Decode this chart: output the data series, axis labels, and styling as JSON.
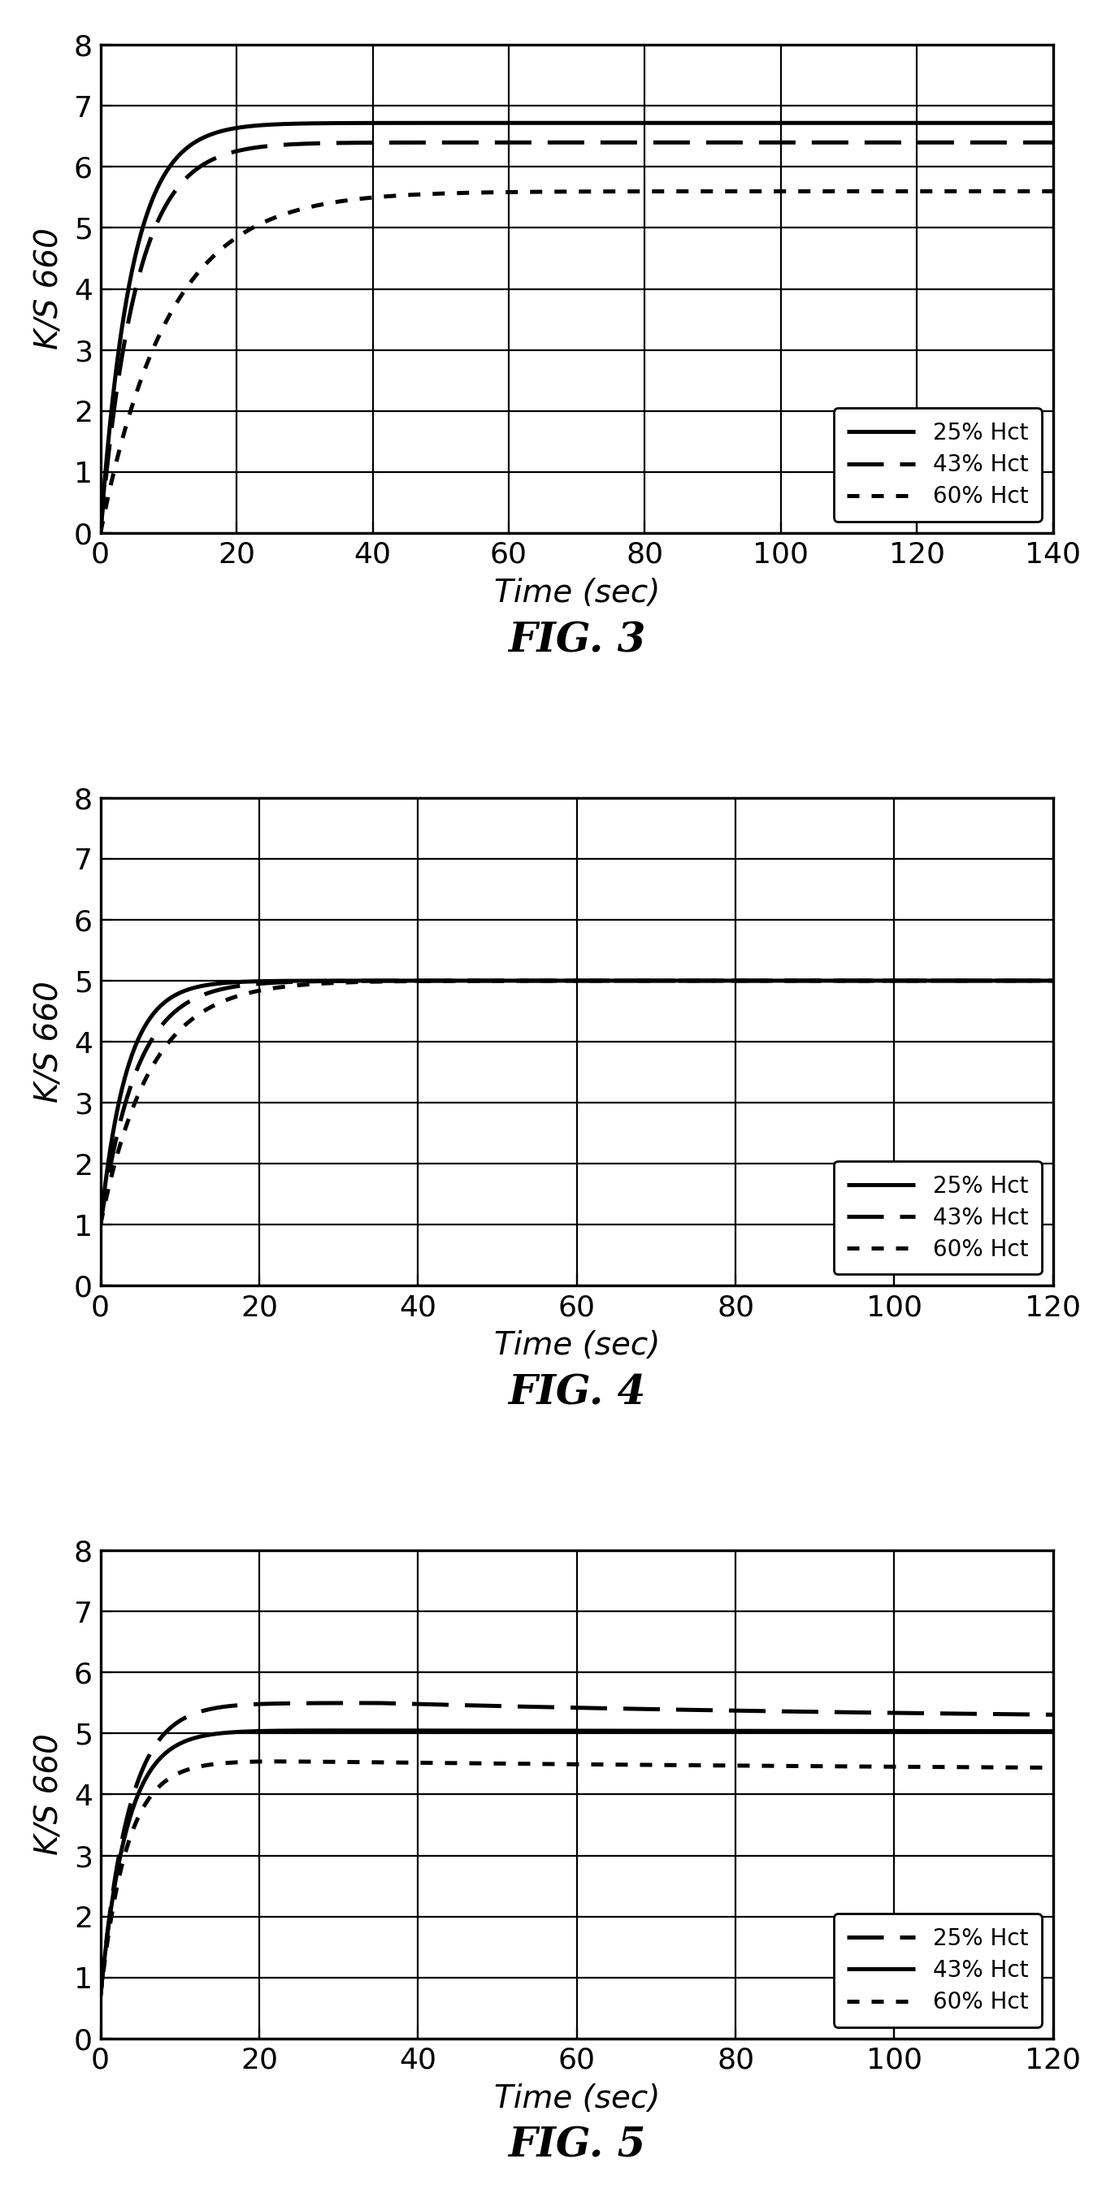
{
  "fig3": {
    "title": "FIG. 3",
    "xlabel": "Time (sec)",
    "ylabel": "K/S 660",
    "xlim": [
      0,
      140
    ],
    "ylim": [
      0,
      8
    ],
    "xticks": [
      0,
      20,
      40,
      60,
      80,
      100,
      120,
      140
    ],
    "yticks": [
      0,
      1,
      2,
      3,
      4,
      5,
      6,
      7,
      8
    ],
    "curves": [
      {
        "label": "25% Hct",
        "linestyle": "solid",
        "asymptote": 6.72,
        "start": 0.0,
        "rate": 0.22
      },
      {
        "label": "43% Hct",
        "linestyle": "long_dash",
        "asymptote": 6.4,
        "start": 0.0,
        "rate": 0.19
      },
      {
        "label": "60% Hct",
        "linestyle": "short_dash",
        "asymptote": 5.6,
        "start": 0.0,
        "rate": 0.1
      }
    ],
    "legend_loc": "lower right"
  },
  "fig4": {
    "title": "FIG. 4",
    "xlabel": "Time (sec)",
    "ylabel": "K/S 660",
    "xlim": [
      0,
      120
    ],
    "ylim": [
      0,
      8
    ],
    "xticks": [
      0,
      20,
      40,
      60,
      80,
      100,
      120
    ],
    "yticks": [
      0,
      1,
      2,
      3,
      4,
      5,
      6,
      7,
      8
    ],
    "curves": [
      {
        "label": "25% Hct",
        "linestyle": "solid",
        "asymptote": 5.0,
        "start": 1.0,
        "rate": 0.3
      },
      {
        "label": "43% Hct",
        "linestyle": "long_dash",
        "asymptote": 5.0,
        "start": 1.0,
        "rate": 0.22
      },
      {
        "label": "60% Hct",
        "linestyle": "short_dash",
        "asymptote": 5.0,
        "start": 1.0,
        "rate": 0.16
      }
    ],
    "legend_loc": "lower right"
  },
  "fig5": {
    "title": "FIG. 5",
    "xlabel": "Time (sec)",
    "ylabel": "K/S 660",
    "xlim": [
      0,
      120
    ],
    "ylim": [
      0,
      8
    ],
    "xticks": [
      0,
      20,
      40,
      60,
      80,
      100,
      120
    ],
    "yticks": [
      0,
      1,
      2,
      3,
      4,
      5,
      6,
      7,
      8
    ],
    "curves": [
      {
        "label": "25% Hct",
        "linestyle": "long_dash",
        "peak": 5.5,
        "peak_t": 35,
        "final": 5.2,
        "start": 0.7,
        "rise_rate": 0.28,
        "decay_rate": 0.012
      },
      {
        "label": "43% Hct",
        "linestyle": "solid",
        "peak": 5.05,
        "peak_t": 25,
        "final": 5.0,
        "start": 0.7,
        "rise_rate": 0.3,
        "decay_rate": 0.003
      },
      {
        "label": "60% Hct",
        "linestyle": "short_dash",
        "peak": 4.55,
        "peak_t": 20,
        "final": 4.35,
        "start": 0.7,
        "rise_rate": 0.3,
        "decay_rate": 0.008
      }
    ],
    "legend_loc": "lower right"
  },
  "line_color": "#000000",
  "background_color": "#ffffff",
  "legend_fontsize": 10,
  "axis_fontsize": 12,
  "title_fontsize": 18,
  "linewidth": 1.8
}
